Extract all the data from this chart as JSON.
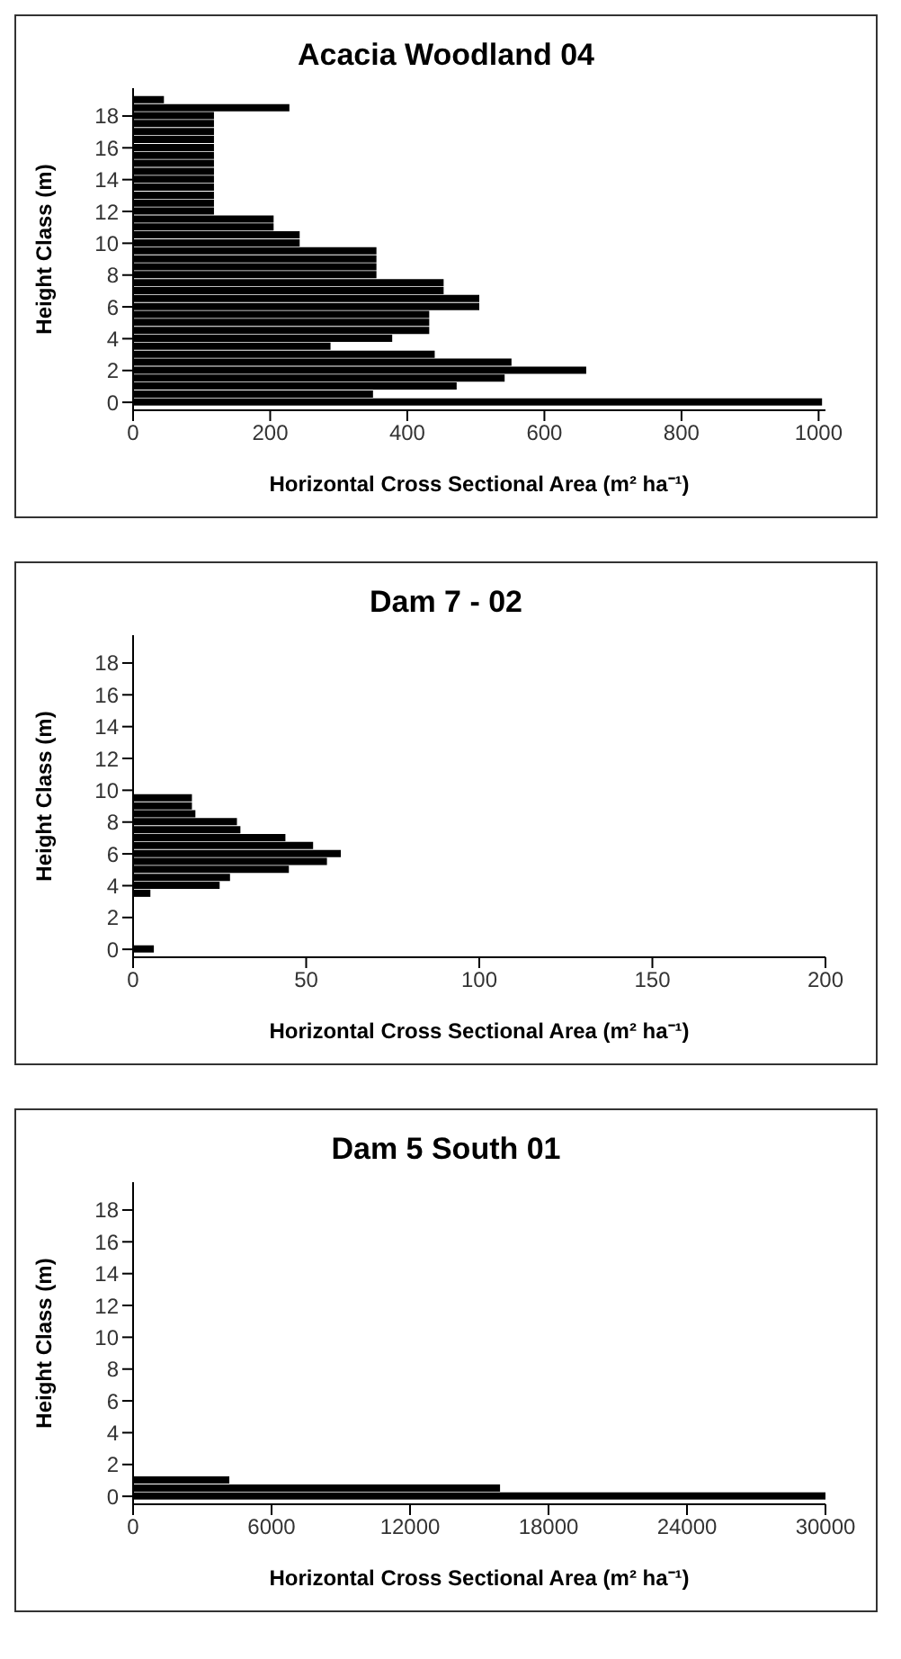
{
  "chart_data": [
    {
      "type": "bar",
      "orientation": "horizontal",
      "title": "Acacia Woodland 04",
      "xlabel": "Horizontal Cross Sectional Area (m² ha⁻¹)",
      "ylabel": "Height Class (m)",
      "x": [
        0,
        0.5,
        1,
        1.5,
        2,
        2.5,
        3,
        3.5,
        4,
        4.5,
        5,
        5.5,
        6,
        6.5,
        7,
        7.5,
        8,
        8.5,
        9,
        9.5,
        10,
        10.5,
        11,
        11.5,
        12,
        12.5,
        13,
        13.5,
        14,
        14.5,
        15,
        15.5,
        16,
        16.5,
        17,
        17.5,
        18,
        18.5,
        19
      ],
      "values": [
        1005,
        350,
        472,
        542,
        661,
        552,
        440,
        288,
        378,
        432,
        432,
        432,
        505,
        505,
        453,
        453,
        355,
        355,
        355,
        355,
        243,
        243,
        205,
        205,
        118,
        118,
        118,
        118,
        118,
        118,
        118,
        118,
        118,
        118,
        118,
        118,
        118,
        228,
        45
      ],
      "color": "#000000",
      "xlim": [
        0,
        1010
      ],
      "xticks": [
        0,
        200,
        400,
        600,
        800,
        1000
      ],
      "ylim": [
        -0.5,
        19.75
      ],
      "yticks": [
        0,
        2,
        4,
        6,
        8,
        10,
        12,
        14,
        16,
        18
      ]
    },
    {
      "type": "bar",
      "orientation": "horizontal",
      "title": "Dam 7 - 02",
      "xlabel": "Horizontal Cross Sectional Area (m² ha⁻¹)",
      "ylabel": "Height Class (m)",
      "x": [
        0,
        0.5,
        1,
        1.5,
        2,
        2.5,
        3,
        3.5,
        4,
        4.5,
        5,
        5.5,
        6,
        6.5,
        7,
        7.5,
        8,
        8.5,
        9,
        9.5,
        10,
        10.5,
        11,
        11.5,
        12,
        12.5,
        13,
        13.5,
        14,
        14.5,
        15,
        15.5,
        16,
        16.5,
        17,
        17.5,
        18,
        18.5,
        19
      ],
      "values": [
        6,
        0,
        0,
        0,
        0,
        0,
        0,
        5,
        25,
        28,
        45,
        56,
        60,
        52,
        44,
        31,
        30,
        18,
        17,
        17,
        0,
        0,
        0,
        0,
        0,
        0,
        0,
        0,
        0,
        0,
        0,
        0,
        0,
        0,
        0,
        0,
        0,
        0,
        0
      ],
      "color": "#000000",
      "xlim": [
        0,
        200
      ],
      "xticks": [
        0,
        50,
        100,
        150,
        200
      ],
      "ylim": [
        -0.5,
        19.75
      ],
      "yticks": [
        0,
        2,
        4,
        6,
        8,
        10,
        12,
        14,
        16,
        18
      ]
    },
    {
      "type": "bar",
      "orientation": "horizontal",
      "title": "Dam 5 South 01",
      "xlabel": "Horizontal Cross Sectional Area (m² ha⁻¹)",
      "ylabel": "Height Class (m)",
      "x": [
        0,
        0.5,
        1,
        1.5,
        2,
        2.5,
        3,
        3.5,
        4,
        4.5,
        5,
        5.5,
        6,
        6.5,
        7,
        7.5,
        8,
        8.5,
        9,
        9.5,
        10,
        10.5,
        11,
        11.5,
        12,
        12.5,
        13,
        13.5,
        14,
        14.5,
        15,
        15.5,
        16,
        16.5,
        17,
        17.5,
        18,
        18.5,
        19
      ],
      "values": [
        30000,
        15900,
        4170,
        0,
        0,
        0,
        0,
        0,
        0,
        0,
        0,
        0,
        0,
        0,
        0,
        0,
        0,
        0,
        0,
        0,
        0,
        0,
        0,
        0,
        0,
        0,
        0,
        0,
        0,
        0,
        0,
        0,
        0,
        0,
        0,
        0,
        0,
        0,
        0
      ],
      "color": "#000000",
      "xlim": [
        0,
        30000
      ],
      "xticks": [
        0,
        6000,
        12000,
        18000,
        24000,
        30000
      ],
      "ylim": [
        -0.5,
        19.75
      ],
      "yticks": [
        0,
        2,
        4,
        6,
        8,
        10,
        12,
        14,
        16,
        18
      ]
    }
  ]
}
